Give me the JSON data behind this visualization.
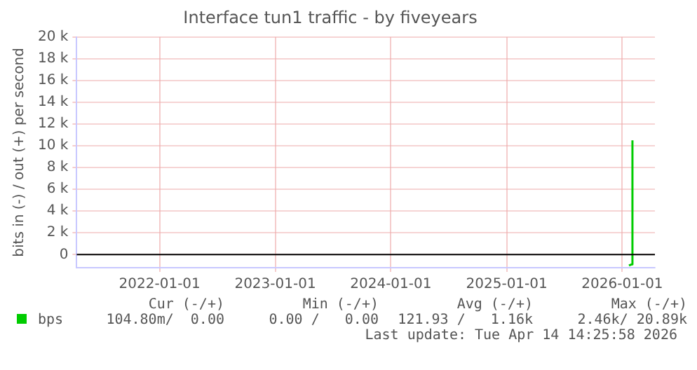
{
  "chart_data": {
    "type": "line",
    "title": "Interface tun1 traffic - by fiveyears",
    "ylabel": "bits in (-) / out (+) per second",
    "series": [
      {
        "name": "bps",
        "color": "#00cc00",
        "x": [
          "2026-01-22",
          "2026-01-30",
          "2026-02-02"
        ],
        "values": [
          -1000,
          -900,
          10500
        ]
      }
    ],
    "xlim": [
      "2021-04-14",
      "2026-04-14"
    ],
    "xticks": [
      "2022-01-01",
      "2023-01-01",
      "2024-01-01",
      "2025-01-01",
      "2026-01-01"
    ],
    "ylim": [
      -1200,
      20000
    ],
    "yticks": [
      0,
      {
        "value": 2000,
        "label": "2 k"
      },
      {
        "value": 4000,
        "label": "4 k"
      },
      {
        "value": 6000,
        "label": "6 k"
      },
      {
        "value": 8000,
        "label": "8 k"
      },
      {
        "value": 10000,
        "label": "10 k"
      },
      {
        "value": 12000,
        "label": "12 k"
      },
      {
        "value": 14000,
        "label": "14 k"
      },
      {
        "value": 16000,
        "label": "16 k"
      },
      {
        "value": 18000,
        "label": "18 k"
      },
      {
        "value": 20000,
        "label": "20 k"
      }
    ],
    "ref_lines": [
      {
        "axis": "y",
        "value": 0,
        "color": "#000000"
      }
    ],
    "grid": true,
    "legend": "bottom",
    "marker": "none",
    "line_style": "solid",
    "annotations": [
      "Cur (-/+)",
      "Min (-/+)",
      "Avg (-/+)",
      "Max (-/+)",
      "104.80m/  0.00",
      "0.00 /   0.00",
      "121.93 /   1.16k",
      "2.46k/ 20.89k",
      "Last update: Tue Apr 14 14:25:58 2026"
    ]
  }
}
